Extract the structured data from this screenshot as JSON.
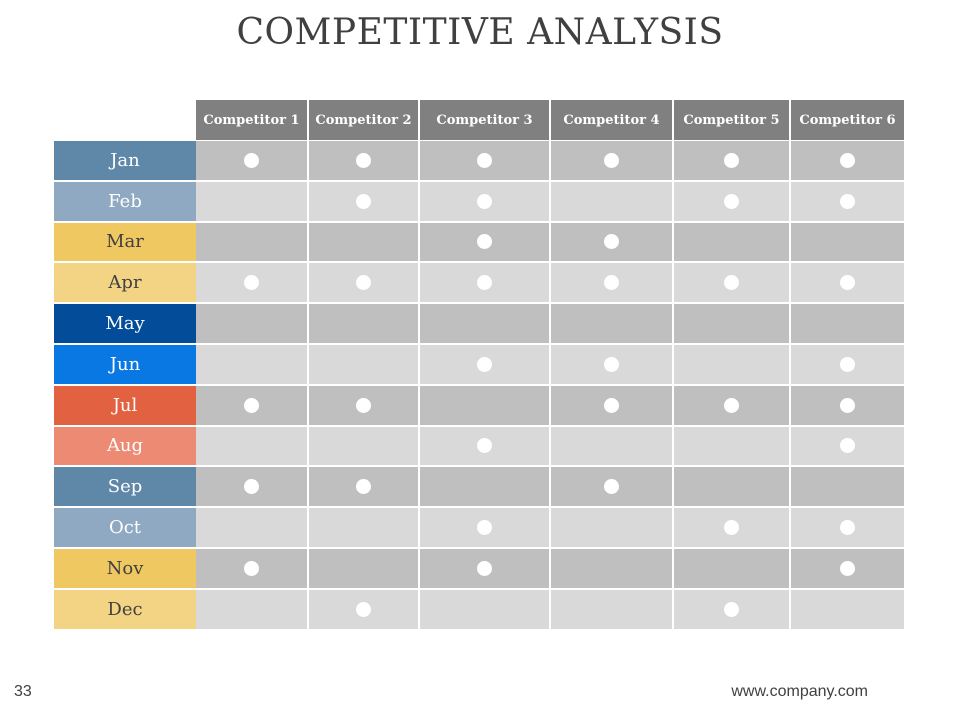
{
  "slide": {
    "title": "COMPETITIVE ANALYSIS",
    "page_number": "33",
    "url": "www.company.com"
  },
  "colors": {
    "header_bg": "#808080",
    "dark_row": "#bfbfbf",
    "light_row": "#d9d9d9",
    "dot": "#ffffff"
  },
  "table": {
    "columns": [
      "Competitor 1",
      "Competitor 2",
      "Competitor 3",
      "Competitor 4",
      "Competitor 5",
      "Competitor 6"
    ],
    "rows": [
      {
        "month": "Jan",
        "bg": "#5f87a8",
        "fg": "#ffffff",
        "marks": [
          1,
          1,
          1,
          1,
          1,
          1
        ]
      },
      {
        "month": "Feb",
        "bg": "#8ea9c1",
        "fg": "#ffffff",
        "marks": [
          0,
          1,
          1,
          0,
          1,
          1
        ]
      },
      {
        "month": "Mar",
        "bg": "#f0c862",
        "fg": "#404040",
        "marks": [
          0,
          0,
          1,
          1,
          0,
          0
        ]
      },
      {
        "month": "Apr",
        "bg": "#f3d484",
        "fg": "#404040",
        "marks": [
          1,
          1,
          1,
          1,
          1,
          1
        ]
      },
      {
        "month": "May",
        "bg": "#024c99",
        "fg": "#ffffff",
        "marks": [
          0,
          0,
          0,
          0,
          0,
          0
        ]
      },
      {
        "month": "Jun",
        "bg": "#0a78e3",
        "fg": "#ffffff",
        "marks": [
          0,
          0,
          1,
          1,
          0,
          1
        ]
      },
      {
        "month": "Jul",
        "bg": "#e26140",
        "fg": "#ffffff",
        "marks": [
          1,
          1,
          0,
          1,
          1,
          1
        ]
      },
      {
        "month": "Aug",
        "bg": "#ed8a73",
        "fg": "#ffffff",
        "marks": [
          0,
          0,
          1,
          0,
          0,
          1
        ]
      },
      {
        "month": "Sep",
        "bg": "#5f87a8",
        "fg": "#ffffff",
        "marks": [
          1,
          1,
          0,
          1,
          0,
          0
        ]
      },
      {
        "month": "Oct",
        "bg": "#8ea9c1",
        "fg": "#ffffff",
        "marks": [
          0,
          0,
          1,
          0,
          1,
          1
        ]
      },
      {
        "month": "Nov",
        "bg": "#f0c862",
        "fg": "#404040",
        "marks": [
          1,
          0,
          1,
          0,
          0,
          1
        ]
      },
      {
        "month": "Dec",
        "bg": "#f3d484",
        "fg": "#404040",
        "marks": [
          0,
          1,
          0,
          0,
          1,
          0
        ]
      }
    ]
  }
}
